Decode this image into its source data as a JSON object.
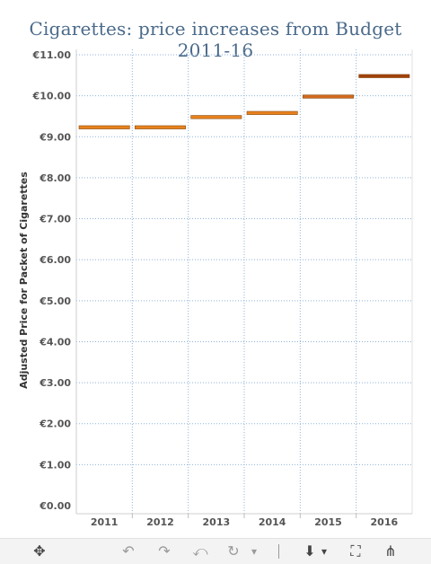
{
  "chart_data": {
    "type": "bar",
    "title": "Cigarettes: price increases from Budget 2011-16",
    "xlabel": "",
    "ylabel": "Adjusted Price for Packet of Cigarettes",
    "categories": [
      "2011",
      "2012",
      "2013",
      "2014",
      "2015",
      "2016"
    ],
    "values": [
      9.23,
      9.23,
      9.48,
      9.58,
      9.98,
      10.48
    ],
    "ylim": [
      0,
      11
    ],
    "yticks": [
      "€0.00",
      "€1.00",
      "€2.00",
      "€3.00",
      "€4.00",
      "€5.00",
      "€6.00",
      "€7.00",
      "€8.00",
      "€9.00",
      "€10.00",
      "€11.00"
    ],
    "grid": true,
    "mark": "horizontal line at value",
    "colors": [
      "#e8821e",
      "#e8821e",
      "#e8821e",
      "#e8821e",
      "#d2691e",
      "#a0400a"
    ]
  },
  "toolbar": {
    "move_icon": "✥",
    "undo_icon": "↶",
    "redo_icon": "↷",
    "revert_icon": "⤺",
    "refresh_icon": "↻",
    "refresh_menu_icon": "▾",
    "download_icon": "⬇",
    "download_menu_icon": "▾",
    "fullscreen_icon": "⛶",
    "share_icon": "⋔"
  }
}
